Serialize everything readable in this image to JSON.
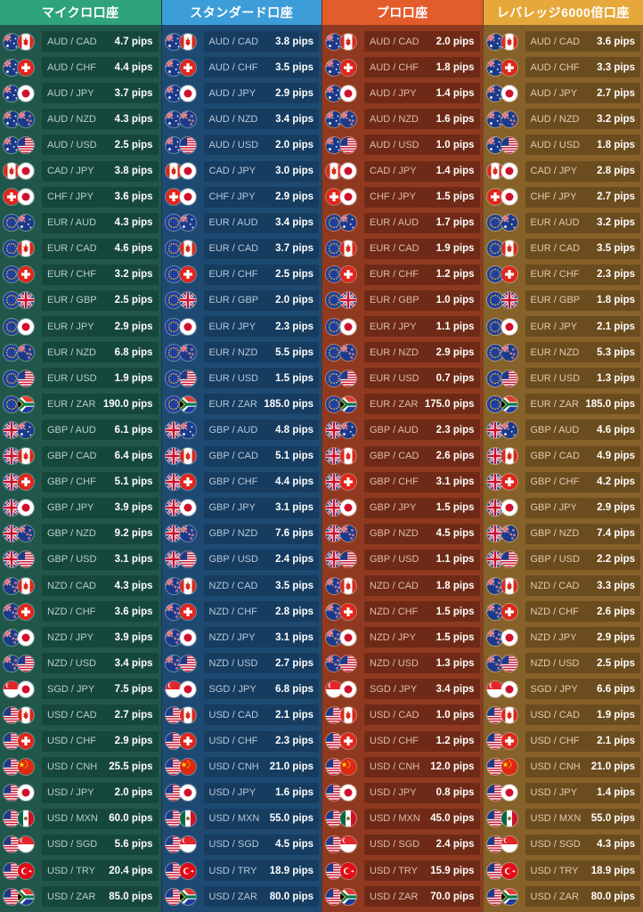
{
  "columns": [
    {
      "title": "マイクロ口座",
      "header_color": "#2fa37e",
      "body_color": "#21574a",
      "cell_color": "#16473b",
      "text_color": "#cfe6de",
      "values": [
        "4.7 pips",
        "4.4 pips",
        "3.7 pips",
        "4.3 pips",
        "2.5 pips",
        "3.8 pips",
        "3.6 pips",
        "4.3 pips",
        "4.6 pips",
        "3.2 pips",
        "2.5 pips",
        "2.9 pips",
        "6.8 pips",
        "1.9 pips",
        "190.0 pips",
        "6.1 pips",
        "6.4 pips",
        "5.1 pips",
        "3.9 pips",
        "9.2 pips",
        "3.1 pips",
        "4.3 pips",
        "3.6 pips",
        "3.9 pips",
        "3.4 pips",
        "7.5 pips",
        "2.7 pips",
        "2.9 pips",
        "25.5 pips",
        "2.0 pips",
        "60.0 pips",
        "5.6 pips",
        "20.4 pips",
        "85.0 pips"
      ]
    },
    {
      "title": "スタンダード口座",
      "header_color": "#3d9dd8",
      "body_color": "#1e4a72",
      "cell_color": "#163c60",
      "text_color": "#cfe0ef",
      "values": [
        "3.8 pips",
        "3.5 pips",
        "2.9 pips",
        "3.4 pips",
        "2.0 pips",
        "3.0 pips",
        "2.9 pips",
        "3.4 pips",
        "3.7 pips",
        "2.5 pips",
        "2.0 pips",
        "2.3 pips",
        "5.5 pips",
        "1.5 pips",
        "185.0 pips",
        "4.8 pips",
        "5.1 pips",
        "4.4 pips",
        "3.1 pips",
        "7.6 pips",
        "2.4 pips",
        "3.5 pips",
        "2.8 pips",
        "3.1 pips",
        "2.7 pips",
        "6.8 pips",
        "2.1 pips",
        "2.3 pips",
        "21.0 pips",
        "1.6 pips",
        "55.0 pips",
        "4.5 pips",
        "18.9 pips",
        "80.0 pips"
      ]
    },
    {
      "title": "プロ口座",
      "header_color": "#e25c2c",
      "body_color": "#8f3a20",
      "cell_color": "#6e2a16",
      "text_color": "#f0d2c6",
      "values": [
        "2.0 pips",
        "1.8 pips",
        "1.4 pips",
        "1.6 pips",
        "1.0 pips",
        "1.4 pips",
        "1.5 pips",
        "1.7 pips",
        "1.9 pips",
        "1.2 pips",
        "1.0 pips",
        "1.1 pips",
        "2.9 pips",
        "0.7 pips",
        "175.0 pips",
        "2.3 pips",
        "2.6 pips",
        "3.1 pips",
        "1.5 pips",
        "4.5 pips",
        "1.1 pips",
        "1.8 pips",
        "1.5 pips",
        "1.5 pips",
        "1.3 pips",
        "3.4 pips",
        "1.0 pips",
        "1.2 pips",
        "12.0 pips",
        "0.8 pips",
        "45.0 pips",
        "2.4 pips",
        "15.9 pips",
        "70.0 pips"
      ]
    },
    {
      "title": "レバレッジ6000倍口座",
      "header_color": "#e6a83a",
      "body_color": "#86612a",
      "cell_color": "#6b4c1e",
      "text_color": "#f0e2c8",
      "values": [
        "3.6 pips",
        "3.3 pips",
        "2.7 pips",
        "3.2 pips",
        "1.8 pips",
        "2.8 pips",
        "2.7 pips",
        "3.2 pips",
        "3.5 pips",
        "2.3 pips",
        "1.8 pips",
        "2.1 pips",
        "5.3 pips",
        "1.3 pips",
        "185.0 pips",
        "4.6 pips",
        "4.9 pips",
        "4.2 pips",
        "2.9 pips",
        "7.4 pips",
        "2.2 pips",
        "3.3 pips",
        "2.6 pips",
        "2.9 pips",
        "2.5 pips",
        "6.6 pips",
        "1.9 pips",
        "2.1 pips",
        "21.0 pips",
        "1.4 pips",
        "55.0 pips",
        "4.3 pips",
        "18.9 pips",
        "80.0 pips"
      ]
    }
  ],
  "pairs": [
    {
      "label": "AUD / CAD",
      "flags": [
        "aud-flag",
        "cad-flag"
      ]
    },
    {
      "label": "AUD / CHF",
      "flags": [
        "aud-flag",
        "chf-flag"
      ]
    },
    {
      "label": "AUD / JPY",
      "flags": [
        "aud-flag",
        "jpy-flag"
      ]
    },
    {
      "label": "AUD / NZD",
      "flags": [
        "aud-flag",
        "nzd-flag"
      ]
    },
    {
      "label": "AUD / USD",
      "flags": [
        "aud-flag",
        "usd-flag"
      ]
    },
    {
      "label": "CAD / JPY",
      "flags": [
        "cad-flag",
        "jpy-flag"
      ]
    },
    {
      "label": "CHF / JPY",
      "flags": [
        "chf-flag",
        "jpy-flag"
      ]
    },
    {
      "label": "EUR / AUD",
      "flags": [
        "eur-flag",
        "aud-flag"
      ]
    },
    {
      "label": "EUR / CAD",
      "flags": [
        "eur-flag",
        "cad-flag"
      ]
    },
    {
      "label": "EUR / CHF",
      "flags": [
        "eur-flag",
        "chf-flag"
      ]
    },
    {
      "label": "EUR / GBP",
      "flags": [
        "eur-flag",
        "gbp-flag"
      ]
    },
    {
      "label": "EUR / JPY",
      "flags": [
        "eur-flag",
        "jpy-flag"
      ]
    },
    {
      "label": "EUR / NZD",
      "flags": [
        "eur-flag",
        "nzd-flag"
      ]
    },
    {
      "label": "EUR / USD",
      "flags": [
        "eur-flag",
        "usd-flag"
      ]
    },
    {
      "label": "EUR / ZAR",
      "flags": [
        "eur-flag",
        "zar-flag"
      ]
    },
    {
      "label": "GBP / AUD",
      "flags": [
        "gbp-flag",
        "aud-flag"
      ]
    },
    {
      "label": "GBP / CAD",
      "flags": [
        "gbp-flag",
        "cad-flag"
      ]
    },
    {
      "label": "GBP / CHF",
      "flags": [
        "gbp-flag",
        "chf-flag"
      ]
    },
    {
      "label": "GBP / JPY",
      "flags": [
        "gbp-flag",
        "jpy-flag"
      ]
    },
    {
      "label": "GBP / NZD",
      "flags": [
        "gbp-flag",
        "nzd-flag"
      ]
    },
    {
      "label": "GBP / USD",
      "flags": [
        "gbp-flag",
        "usd-flag"
      ]
    },
    {
      "label": "NZD / CAD",
      "flags": [
        "nzd-flag",
        "cad-flag"
      ]
    },
    {
      "label": "NZD / CHF",
      "flags": [
        "nzd-flag",
        "chf-flag"
      ]
    },
    {
      "label": "NZD / JPY",
      "flags": [
        "nzd-flag",
        "jpy-flag"
      ]
    },
    {
      "label": "NZD / USD",
      "flags": [
        "nzd-flag",
        "usd-flag"
      ]
    },
    {
      "label": "SGD / JPY",
      "flags": [
        "sgd-flag",
        "jpy-flag"
      ]
    },
    {
      "label": "USD / CAD",
      "flags": [
        "usd-flag",
        "cad-flag"
      ]
    },
    {
      "label": "USD / CHF",
      "flags": [
        "usd-flag",
        "chf-flag"
      ]
    },
    {
      "label": "USD / CNH",
      "flags": [
        "usd-flag",
        "cnh-flag"
      ]
    },
    {
      "label": "USD / JPY",
      "flags": [
        "usd-flag",
        "jpy-flag"
      ]
    },
    {
      "label": "USD / MXN",
      "flags": [
        "usd-flag",
        "mxn-flag"
      ]
    },
    {
      "label": "USD / SGD",
      "flags": [
        "usd-flag",
        "sgd-flag"
      ]
    },
    {
      "label": "USD / TRY",
      "flags": [
        "usd-flag",
        "try-flag"
      ]
    },
    {
      "label": "USD / ZAR",
      "flags": [
        "usd-flag",
        "zar-flag"
      ]
    }
  ]
}
